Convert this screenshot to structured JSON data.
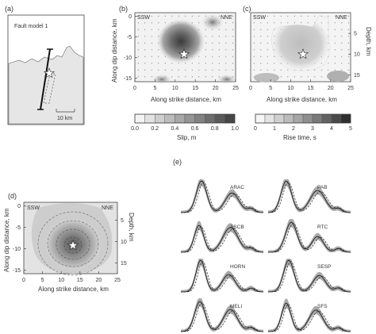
{
  "panel_a": {
    "letter": "(a)",
    "title": "Fault model 1",
    "scale_label": "10 km"
  },
  "panel_b": {
    "letter": "(b)",
    "left_corner": "SSW",
    "right_corner": "NNE",
    "ylabel": "Along dip distance, km",
    "xlabel": "Along strike distance, km",
    "x_ticks": [
      "0",
      "5",
      "10",
      "15",
      "20",
      "25"
    ],
    "y_ticks": [
      "0",
      "-5",
      "-10",
      "-15"
    ]
  },
  "panel_c": {
    "letter": "(c)",
    "left_corner": "SSW",
    "right_corner": "NNE",
    "ylabel": "Depth, km",
    "xlabel": "Along strike distance, km",
    "x_ticks": [
      "0",
      "5",
      "10",
      "15",
      "20",
      "25"
    ],
    "y_ticks": [
      "5",
      "10",
      "15"
    ]
  },
  "colorbars": {
    "slip": {
      "label": "Slip, m",
      "ticks": [
        "0.0",
        "0.2",
        "0.4",
        "0.6",
        "0.8",
        "1.0"
      ],
      "colors": [
        "#f4f4f4",
        "#e2e2e2",
        "#cfcfcf",
        "#bcbcbc",
        "#a8a8a8",
        "#959595",
        "#828282",
        "#6e6e6e",
        "#5a5a5a",
        "#464646"
      ]
    },
    "rise": {
      "label": "Rise time, s",
      "ticks": [
        "0",
        "1",
        "2",
        "3",
        "4",
        "5"
      ],
      "colors": [
        "#f6f6f6",
        "#e4e4e4",
        "#d0d0d0",
        "#bcbcbc",
        "#a6a6a6",
        "#909090",
        "#7a7a7a",
        "#626262",
        "#4a4a4a",
        "#2e2e2e"
      ]
    }
  },
  "panel_d": {
    "letter": "(d)",
    "left_corner": "SSW",
    "right_corner": "NNE",
    "ylabel": "Along dip distance, km",
    "right_label": "Depth, km",
    "xlabel": "Along strike distance, km",
    "x_ticks": [
      "0",
      "5",
      "10",
      "15",
      "20",
      "25"
    ],
    "y_ticks": [
      "0",
      "-5",
      "-10",
      "-15"
    ],
    "right_ticks": [
      "5",
      "10",
      "15"
    ]
  },
  "panel_e": {
    "letter": "(e)",
    "stations_left": [
      "ARAC",
      "ASCB",
      "HORN",
      "MELI"
    ],
    "stations_right": [
      "PAB",
      "RTC",
      "SESP",
      "SFS"
    ]
  }
}
